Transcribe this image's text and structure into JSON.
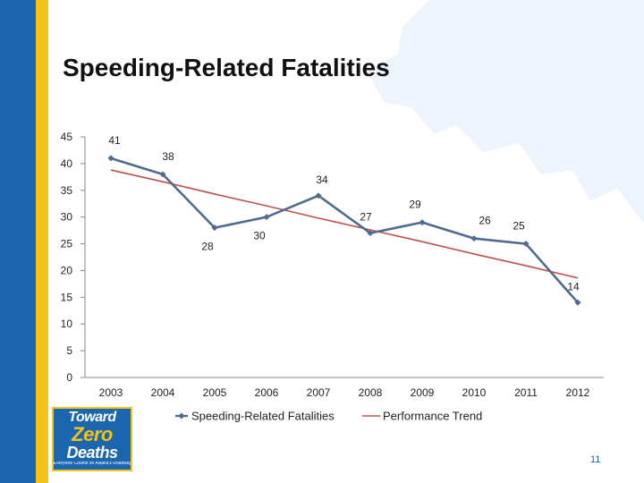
{
  "slide": {
    "title": "Speeding-Related Fatalities",
    "page_number": "11",
    "logo": {
      "line1": "Toward",
      "line2": "Zero",
      "line3": "Deaths",
      "tagline": "Everyone Counts on Alaska's Roadways"
    }
  },
  "colors": {
    "brand_blue": "#1c66b0",
    "brand_gold": "#f3c318",
    "series_line": "#4f6b8f",
    "trend_line": "#c0504d"
  },
  "chart_data": {
    "type": "line",
    "title": "",
    "categories": [
      "2003",
      "2004",
      "2005",
      "2006",
      "2007",
      "2008",
      "2009",
      "2010",
      "2011",
      "2012"
    ],
    "series": [
      {
        "name": "Speeding-Related Fatalities",
        "values": [
          41,
          38,
          28,
          30,
          34,
          27,
          29,
          26,
          25,
          14
        ],
        "labels": [
          "41",
          "38",
          "28",
          "30",
          "34",
          "27",
          "29",
          "26",
          "25",
          "14"
        ]
      },
      {
        "name": "Performance Trend",
        "values": [
          38.8,
          36.6,
          34.3,
          32.1,
          29.8,
          27.6,
          25.4,
          23.1,
          20.9,
          18.6
        ]
      }
    ],
    "ylim": [
      0,
      45
    ],
    "yticks": [
      "0",
      "5",
      "10",
      "15",
      "20",
      "25",
      "30",
      "35",
      "40",
      "45"
    ],
    "grid": false,
    "legend_position": "bottom"
  }
}
